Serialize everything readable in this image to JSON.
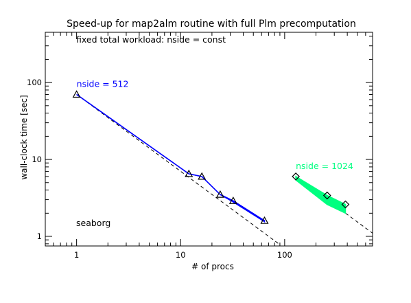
{
  "chart_data": {
    "type": "line",
    "title": "Speed-up for map2alm routine with full Plm precomputation",
    "annotation": "fixed total workload: nside = const",
    "machine_label": "seaborg",
    "xlabel": "# of procs",
    "ylabel": "wall-clock time [sec]",
    "xscale": "log",
    "yscale": "log",
    "xlim": [
      0.5,
      700
    ],
    "ylim": [
      0.75,
      450
    ],
    "x_ticks": [
      {
        "value": 1,
        "label": "1"
      },
      {
        "value": 10,
        "label": "10"
      },
      {
        "value": 100,
        "label": "100"
      }
    ],
    "y_ticks": [
      {
        "value": 1,
        "label": "1"
      },
      {
        "value": 10,
        "label": "10"
      },
      {
        "value": 100,
        "label": "100"
      }
    ],
    "grid": false,
    "legend": "none",
    "series": [
      {
        "name": "nside = 512",
        "color": "#0000ff",
        "marker": "triangle",
        "x": [
          1,
          12,
          16,
          24,
          32,
          64
        ],
        "y": [
          70,
          6.5,
          6.0,
          3.5,
          2.9,
          1.6
        ],
        "band_y": [
          70,
          6.5,
          6.0,
          3.5,
          2.8,
          1.55
        ]
      },
      {
        "name": "nside = 1024",
        "color": "#00ff80",
        "marker": "diamond",
        "x": [
          128,
          256,
          384
        ],
        "y": [
          6.0,
          3.4,
          2.6
        ],
        "band_y": [
          5.4,
          2.6,
          2.0
        ]
      }
    ],
    "ideal_scaling": [
      {
        "x": [
          1,
          90
        ],
        "y": [
          70,
          0.78
        ],
        "style": "dashed"
      },
      {
        "x": [
          128,
          700
        ],
        "y": [
          6.0,
          1.1
        ],
        "style": "dashed"
      }
    ]
  }
}
